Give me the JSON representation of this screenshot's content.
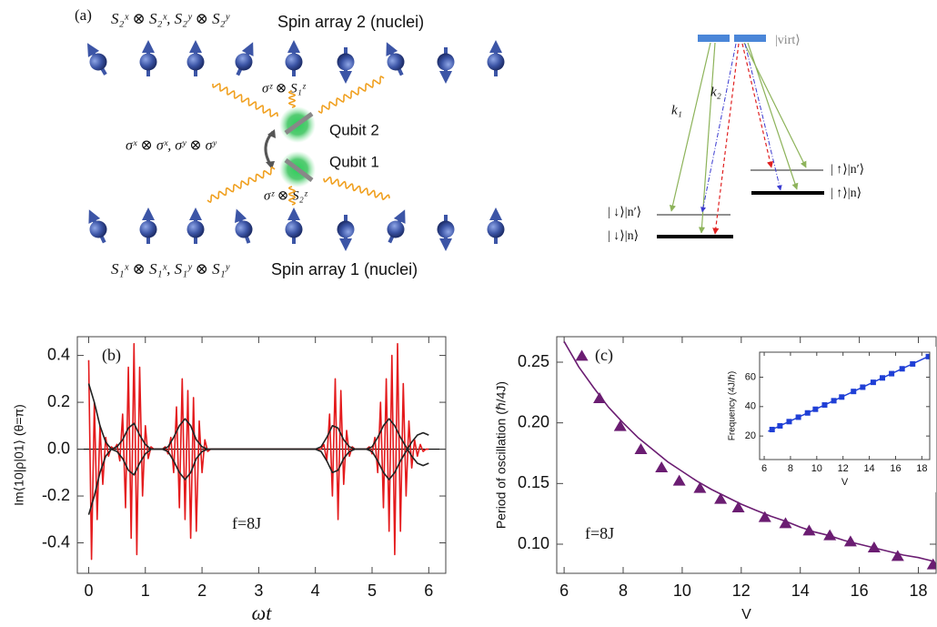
{
  "panel_a": {
    "label": "(a)",
    "top_operators": "S₂ˣ ⊗ S₂ˣ,  S₂ʸ ⊗ S₂ʸ",
    "top_title": "Spin array 2 (nuclei)",
    "coupling_top": "σᶻ ⊗ S₁ᶻ",
    "qubit2": "Qubit 2",
    "exchange": "σˣ ⊗ σˣ,  σʸ ⊗ σʸ",
    "qubit1": "Qubit 1",
    "coupling_bottom": "σᶻ ⊗ S₂ᶻ",
    "bottom_operators": "S₁ˣ ⊗ S₁ˣ,  S₁ʸ ⊗ S₁ʸ",
    "bottom_title": "Spin array 1 (nuclei)"
  },
  "levels": {
    "virt": "|virt⟩",
    "k1": "k₁",
    "k2": "k₂",
    "up_n_prime": "| ↑⟩|n′⟩",
    "up_n": "| ↑⟩|n⟩",
    "down_n_prime": "| ↓⟩|n′⟩",
    "down_n": "| ↓⟩|n⟩"
  },
  "chart_data": [
    {
      "type": "line",
      "label": "(b)",
      "annotation": "f=8J",
      "ylabel": "Im⟨10|ρ|01⟩ (θ=π)",
      "xlabel": "ωt",
      "xlim": [
        -0.2,
        6.3
      ],
      "ylim": [
        -0.53,
        0.48
      ],
      "xticks": [
        0,
        1,
        2,
        3,
        4,
        5,
        6
      ],
      "yticks": [
        -0.4,
        -0.2,
        {
          "value": 0,
          "label": "0.0"
        },
        0.2,
        0.4
      ],
      "series": [
        {
          "color": "#e41a1c",
          "mode": "line",
          "x": [
            0,
            0.05,
            0.1,
            0.15,
            0.2,
            0.25,
            0.3,
            0.35,
            0.4,
            0.45,
            0.5,
            0.55,
            0.6,
            0.65,
            0.7,
            0.75,
            0.8,
            0.85,
            0.9,
            0.95,
            1,
            1.05,
            1.1,
            1.15,
            1.2,
            1.25,
            1.3,
            1.35,
            1.4,
            1.45,
            1.5,
            1.55,
            1.6,
            1.65,
            1.7,
            1.75,
            1.8,
            1.85,
            1.9,
            1.95,
            2,
            2.05,
            2.1,
            2.15,
            2.2,
            2.25,
            2.3,
            2.35,
            2.4,
            2.45,
            2.5,
            2.55,
            2.6,
            2.65,
            2.7,
            2.75,
            2.8,
            2.85,
            2.9,
            2.95,
            3,
            3.05,
            3.1,
            3.15,
            3.2,
            3.25,
            3.3,
            3.35,
            3.4,
            3.45,
            3.5,
            3.55,
            3.6,
            3.65,
            3.7,
            3.75,
            3.8,
            3.85,
            3.9,
            3.95,
            4,
            4.05,
            4.1,
            4.15,
            4.2,
            4.25,
            4.3,
            4.35,
            4.4,
            4.45,
            4.5,
            4.55,
            4.6,
            4.65,
            4.7,
            4.75,
            4.8,
            4.85,
            4.9,
            4.95,
            5,
            5.05,
            5.1,
            5.15,
            5.2,
            5.25,
            5.3,
            5.35,
            5.4,
            5.45,
            5.5,
            5.55,
            5.6,
            5.65,
            5.7,
            5.75,
            5.8,
            5.85,
            5.9,
            5.95,
            6
          ],
          "values": [
            0.38,
            -0.47,
            0.2,
            -0.3,
            0.1,
            -0.15,
            0.05,
            -0.03,
            0.01,
            0,
            0.02,
            -0.05,
            0.15,
            -0.25,
            0.35,
            -0.38,
            0.45,
            -0.45,
            0.35,
            -0.2,
            0.1,
            -0.04,
            0.01,
            0,
            0,
            0,
            0,
            0.01,
            -0.02,
            0.05,
            -0.1,
            0.18,
            -0.25,
            0.3,
            -0.3,
            0.25,
            -0.38,
            0.22,
            -0.35,
            0.12,
            -0.1,
            0.04,
            -0.01,
            0,
            0,
            0,
            0,
            0,
            0,
            0,
            0,
            0,
            0,
            0,
            0,
            0,
            0,
            0,
            0,
            0,
            0,
            0,
            0,
            0,
            0,
            0,
            0,
            0,
            0,
            0,
            0,
            0,
            0,
            0,
            0,
            0,
            0,
            0,
            0,
            0,
            0,
            0,
            0,
            0.02,
            -0.05,
            0.15,
            -0.2,
            0.3,
            -0.3,
            0.25,
            -0.15,
            0.08,
            -0.03,
            0.01,
            0,
            0,
            0,
            0,
            0,
            0.01,
            -0.02,
            0.05,
            -0.1,
            0.2,
            -0.25,
            0.3,
            -0.35,
            0.4,
            -0.45,
            0.45,
            -0.35,
            0.28,
            -0.2,
            0.12,
            -0.08,
            0.04,
            -0.03,
            0.02,
            -0.01,
            0,
            0
          ]
        },
        {
          "color": "#222222",
          "mode": "line",
          "x": [
            0,
            0.1,
            0.2,
            0.3,
            0.4,
            0.5,
            0.6,
            0.7,
            0.8,
            0.9,
            1,
            1.1,
            1.2,
            1.3,
            1.4,
            1.5,
            1.6,
            1.7,
            1.8,
            1.9,
            2,
            2.1,
            2.2,
            2.3,
            2.4,
            2.5,
            2.6,
            2.7,
            2.8,
            2.9,
            3,
            3.1,
            3.2,
            3.3,
            3.4,
            3.5,
            3.6,
            3.7,
            3.8,
            3.9,
            4,
            4.1,
            4.2,
            4.3,
            4.4,
            4.5,
            4.6,
            4.7,
            4.8,
            4.9,
            5,
            5.1,
            5.2,
            5.3,
            5.4,
            5.5,
            5.6,
            5.7,
            5.8,
            5.9,
            6
          ],
          "values": [
            -0.28,
            -0.2,
            -0.1,
            -0.03,
            0,
            0.01,
            0.04,
            0.09,
            0.11,
            0.06,
            0.02,
            0,
            0,
            0,
            0.01,
            0.05,
            0.1,
            0.13,
            0.1,
            0.04,
            0.01,
            0,
            0,
            0,
            0,
            0,
            0,
            0,
            0,
            0,
            0,
            0,
            0,
            0,
            0,
            0,
            0,
            0,
            0,
            0,
            0,
            0.01,
            0.05,
            0.1,
            0.09,
            0.04,
            0.01,
            0,
            0,
            0,
            0.01,
            0.05,
            0.1,
            0.13,
            0.1,
            0.05,
            0.01,
            -0.03,
            -0.06,
            -0.07,
            -0.06
          ]
        },
        {
          "color": "#222222",
          "mode": "line",
          "x": [
            0,
            0.1,
            0.2,
            0.3,
            0.4,
            0.5,
            0.6,
            0.7,
            0.8,
            0.9,
            1,
            1.1,
            1.2,
            1.3,
            1.4,
            1.5,
            1.6,
            1.7,
            1.8,
            1.9,
            2,
            2.1,
            2.2,
            2.3,
            2.4,
            2.5,
            2.6,
            2.7,
            2.8,
            2.9,
            3,
            3.1,
            3.2,
            3.3,
            3.4,
            3.5,
            3.6,
            3.7,
            3.8,
            3.9,
            4,
            4.1,
            4.2,
            4.3,
            4.4,
            4.5,
            4.6,
            4.7,
            4.8,
            4.9,
            5,
            5.1,
            5.2,
            5.3,
            5.4,
            5.5,
            5.6,
            5.7,
            5.8,
            5.9,
            6
          ],
          "values": [
            0.28,
            0.2,
            0.1,
            0.03,
            0,
            -0.01,
            -0.04,
            -0.09,
            -0.11,
            -0.06,
            -0.02,
            0,
            0,
            0,
            -0.01,
            -0.05,
            -0.1,
            -0.13,
            -0.1,
            -0.04,
            -0.01,
            0,
            0,
            0,
            0,
            0,
            0,
            0,
            0,
            0,
            0,
            0,
            0,
            0,
            0,
            0,
            0,
            0,
            0,
            0,
            0,
            -0.01,
            -0.05,
            -0.1,
            -0.09,
            -0.04,
            -0.01,
            0,
            0,
            0,
            -0.01,
            -0.05,
            -0.1,
            -0.13,
            -0.1,
            -0.05,
            -0.01,
            0.03,
            0.06,
            0.07,
            0.06
          ]
        }
      ]
    },
    {
      "type": "scatter",
      "label": "(c)",
      "annotation": "f=8J",
      "ylabel": "Period of oscillation (ℏ/4J)",
      "xlabel": "V",
      "xlim": [
        5.75,
        18.6
      ],
      "ylim": [
        0.076,
        0.271
      ],
      "xticks": [
        6,
        8,
        10,
        12,
        14,
        16,
        18
      ],
      "yticks": [
        {
          "value": 0.1,
          "label": "0.10"
        },
        0.15,
        {
          "value": 0.2,
          "label": "0.20"
        },
        0.25
      ],
      "series": [
        {
          "color": "#6b1d72",
          "mode": "line",
          "x": [
            6,
            6.5,
            7,
            7.5,
            8,
            8.5,
            9,
            9.5,
            10,
            10.5,
            11,
            11.5,
            12,
            12.5,
            13,
            13.5,
            14,
            14.5,
            15,
            15.5,
            16,
            16.5,
            17,
            17.5,
            18,
            18.5
          ],
          "values": [
            0.267,
            0.246,
            0.229,
            0.213,
            0.2,
            0.188,
            0.178,
            0.168,
            0.16,
            0.152,
            0.145,
            0.139,
            0.133,
            0.128,
            0.123,
            0.119,
            0.114,
            0.11,
            0.107,
            0.103,
            0.1,
            0.097,
            0.094,
            0.091,
            0.089,
            0.086
          ]
        },
        {
          "color": "#6b1d72",
          "mode": "markers",
          "marker": "triangle",
          "x": [
            6.6,
            7.2,
            7.9,
            8.6,
            9.3,
            9.9,
            10.6,
            11.3,
            11.9,
            12.8,
            13.5,
            14.3,
            15,
            15.7,
            16.5,
            17.3,
            18.5
          ],
          "values": [
            0.255,
            0.22,
            0.197,
            0.178,
            0.163,
            0.152,
            0.146,
            0.137,
            0.13,
            0.122,
            0.117,
            0.111,
            0.107,
            0.102,
            0.097,
            0.09,
            0.083
          ]
        }
      ]
    },
    {
      "type": "scatter",
      "inset": true,
      "ylabel": "Frequency (4J/ℏ)",
      "xlabel": "V",
      "xlim": [
        5.65,
        18.6
      ],
      "ylim": [
        4,
        77
      ],
      "xticks": [
        6,
        8,
        10,
        12,
        14,
        16,
        18
      ],
      "yticks": [
        20,
        40,
        60
      ],
      "series": [
        {
          "color": "#1f3fd6",
          "mode": "line",
          "x": [
            6.3,
            18.6
          ],
          "values": [
            23.2,
            74.5
          ]
        },
        {
          "color": "#1f3fd6",
          "mode": "markers",
          "marker": "square",
          "x": [
            6.6,
            7.2,
            7.9,
            8.6,
            9.3,
            9.9,
            10.6,
            11.3,
            11.9,
            12.8,
            13.5,
            14.3,
            15,
            15.7,
            16.5,
            17.3,
            18.5
          ],
          "values": [
            24.4,
            26.9,
            29.8,
            32.8,
            35.7,
            38.2,
            41.1,
            44,
            46.5,
            50.3,
            53.2,
            56.5,
            59.5,
            62.4,
            65.7,
            69,
            74
          ]
        }
      ]
    }
  ]
}
